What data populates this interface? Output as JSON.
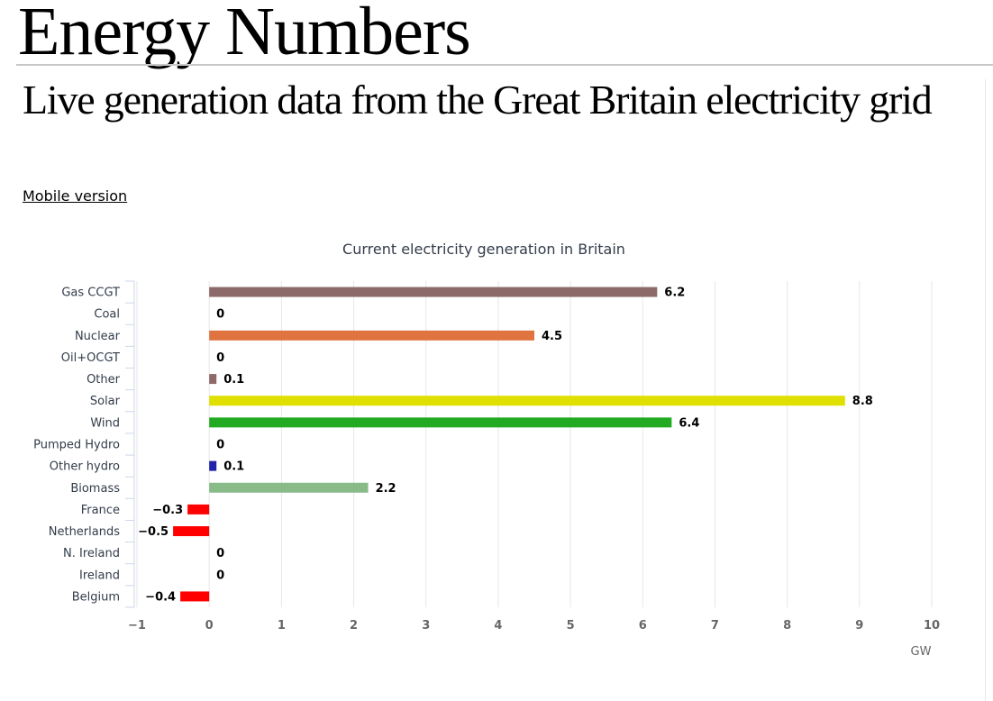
{
  "header": {
    "site_title": "Energy Numbers",
    "subtitle": "Live generation data from the Great Britain electricity grid",
    "mobile_link": "Mobile version"
  },
  "chart_data": {
    "type": "bar",
    "orientation": "horizontal",
    "title": "Current electricity generation in Britain",
    "xlabel": "GW",
    "ylabel": "",
    "xlim": [
      -1,
      10
    ],
    "x_ticks": [
      "−1",
      "0",
      "1",
      "2",
      "3",
      "4",
      "5",
      "6",
      "7",
      "8",
      "9",
      "10"
    ],
    "grid": true,
    "categories": [
      "Gas CCGT",
      "Coal",
      "Nuclear",
      "Oil+OCGT",
      "Other",
      "Solar",
      "Wind",
      "Pumped Hydro",
      "Other hydro",
      "Biomass",
      "France",
      "Netherlands",
      "N. Ireland",
      "Ireland",
      "Belgium"
    ],
    "values": [
      6.2,
      0,
      4.5,
      0,
      0.1,
      8.8,
      6.4,
      0,
      0.1,
      2.2,
      -0.3,
      -0.5,
      0,
      0,
      -0.4
    ],
    "value_labels": [
      "6.2",
      "0",
      "4.5",
      "0",
      "0.1",
      "8.8",
      "6.4",
      "0",
      "0.1",
      "2.2",
      "−0.3",
      "−0.5",
      "0",
      "0",
      "−0.4"
    ],
    "colors": [
      "#8c6a6a",
      "#222222",
      "#e07440",
      "#555555",
      "#8c6a6a",
      "#e0e000",
      "#22aa22",
      "#2222aa",
      "#2222aa",
      "#88bb88",
      "#ff0000",
      "#ff0000",
      "#ff0000",
      "#ff0000",
      "#ff0000"
    ]
  }
}
